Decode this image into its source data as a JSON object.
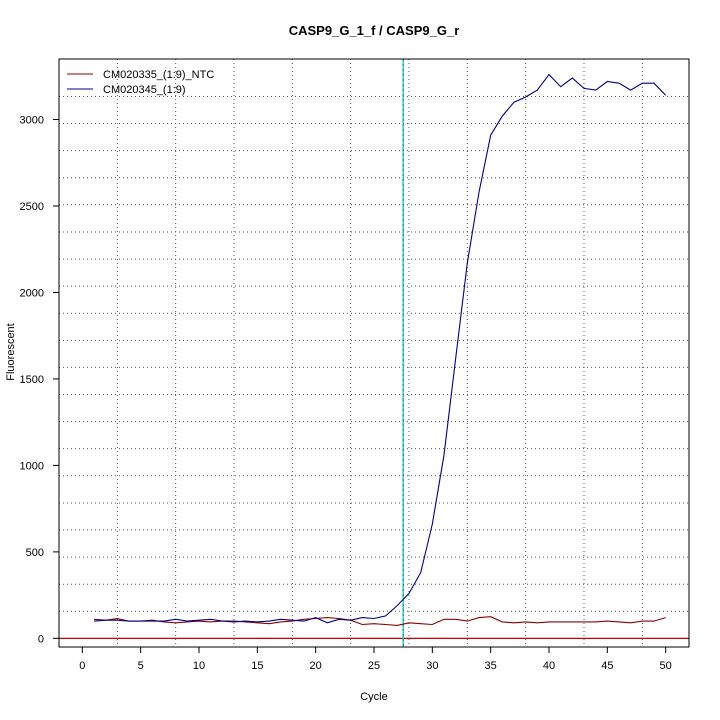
{
  "chart_data": {
    "type": "line",
    "title": "CASP9_G_1_f / CASP9_G_r",
    "xlabel": "Cycle",
    "ylabel": "Fluorescent",
    "xlim": [
      -2,
      52
    ],
    "ylim": [
      -50,
      3350
    ],
    "x_ticks": [
      0,
      5,
      10,
      15,
      20,
      25,
      30,
      35,
      40,
      45,
      50
    ],
    "y_ticks": [
      0,
      500,
      1000,
      1500,
      2000,
      2500,
      3000
    ],
    "x_grid": [
      3,
      8,
      13,
      18,
      23,
      28,
      33,
      38,
      43,
      48
    ],
    "y_grid": [
      0,
      157,
      313,
      470,
      627,
      783,
      940,
      1097,
      1253,
      1410,
      1567,
      1723,
      1880,
      2037,
      2193,
      2350,
      2507,
      2663,
      2820,
      2977,
      3133
    ],
    "grid": true,
    "legend_position": "top-left",
    "threshold": 0,
    "threshold_color": "#cc0000",
    "ct_line": 27.5,
    "ct_line_color": "#00cccc",
    "series": [
      {
        "name": "CM020335_(1:9)_NTC",
        "color": "#8b0000",
        "x": [
          1,
          2,
          3,
          4,
          5,
          6,
          7,
          8,
          9,
          10,
          11,
          12,
          13,
          14,
          15,
          16,
          17,
          18,
          19,
          20,
          21,
          22,
          23,
          24,
          25,
          26,
          27,
          28,
          29,
          30,
          31,
          32,
          33,
          34,
          35,
          36,
          37,
          38,
          39,
          40,
          41,
          42,
          43,
          44,
          45,
          46,
          47,
          48,
          49,
          50
        ],
        "values": [
          110,
          105,
          115,
          100,
          100,
          105,
          95,
          90,
          95,
          100,
          95,
          100,
          100,
          95,
          90,
          85,
          95,
          100,
          110,
          115,
          120,
          115,
          105,
          80,
          85,
          80,
          75,
          90,
          85,
          80,
          110,
          110,
          100,
          120,
          125,
          95,
          90,
          95,
          90,
          95,
          95,
          95,
          95,
          95,
          100,
          95,
          90,
          100,
          100,
          120
        ]
      },
      {
        "name": "CM020345_(1:9)",
        "color": "#00008b",
        "x": [
          1,
          2,
          3,
          4,
          5,
          6,
          7,
          8,
          9,
          10,
          11,
          12,
          13,
          14,
          15,
          16,
          17,
          18,
          19,
          20,
          21,
          22,
          23,
          24,
          25,
          26,
          27,
          28,
          29,
          30,
          31,
          32,
          33,
          34,
          35,
          36,
          37,
          38,
          39,
          40,
          41,
          42,
          43,
          44,
          45,
          46,
          47,
          48,
          49,
          50
        ],
        "values": [
          100,
          105,
          105,
          100,
          100,
          100,
          100,
          110,
          100,
          105,
          110,
          100,
          95,
          100,
          95,
          100,
          110,
          105,
          100,
          120,
          90,
          110,
          105,
          120,
          115,
          130,
          190,
          260,
          380,
          660,
          1060,
          1620,
          2170,
          2580,
          2910,
          3020,
          3100,
          3130,
          3170,
          3260,
          3190,
          3240,
          3180,
          3170,
          3220,
          3210,
          3170,
          3210,
          3210,
          3140
        ]
      }
    ]
  }
}
